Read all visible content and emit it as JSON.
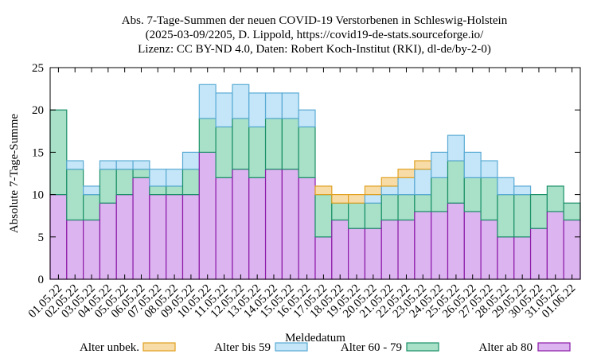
{
  "chart_data": {
    "type": "bar",
    "stacked": true,
    "title_lines": [
      "Abs. 7-Tage-Summen der neuen COVID-19 Verstorbenen in Schleswig-Holstein",
      "(2025-03-09/2205, D. Lippold, https://covid19-de-stats.sourceforge.io/",
      "Lizenz: CC BY-ND 4.0, Daten: Robert Koch-Institut (RKI), dl-de/by-2-0)"
    ],
    "xlabel": "Meldedatum",
    "ylabel": "Absolute 7-Tage-Summe",
    "ylim": [
      0,
      25
    ],
    "yticks": [
      0,
      5,
      10,
      15,
      20,
      25
    ],
    "grid": false,
    "legend_position": "bottom",
    "categories": [
      "01.05.22",
      "02.05.22",
      "03.05.22",
      "04.05.22",
      "05.05.22",
      "06.05.22",
      "07.05.22",
      "08.05.22",
      "09.05.22",
      "10.05.22",
      "11.05.22",
      "12.05.22",
      "13.05.22",
      "14.05.22",
      "15.05.22",
      "16.05.22",
      "17.05.22",
      "18.05.22",
      "19.05.22",
      "20.05.22",
      "21.05.22",
      "22.05.22",
      "23.05.22",
      "24.05.22",
      "25.05.22",
      "26.05.22",
      "27.05.22",
      "28.05.22",
      "29.05.22",
      "30.05.22",
      "31.05.22",
      "01.06.22"
    ],
    "series": [
      {
        "name": "Alter ab 80",
        "color": "#dcb4f0",
        "stroke": "#8c1aa8",
        "values": [
          10,
          7,
          7,
          9,
          10,
          12,
          10,
          10,
          10,
          15,
          12,
          13,
          12,
          13,
          13,
          12,
          5,
          7,
          6,
          6,
          7,
          7,
          8,
          8,
          9,
          8,
          7,
          5,
          5,
          6,
          8,
          7
        ]
      },
      {
        "name": "Alter 60 - 79",
        "color": "#a8e0c8",
        "stroke": "#1a9068",
        "values": [
          10,
          6,
          3,
          4,
          3,
          1,
          1,
          1,
          3,
          4,
          6,
          6,
          6,
          6,
          6,
          6,
          5,
          2,
          3,
          3,
          3,
          3,
          2,
          4,
          5,
          4,
          5,
          5,
          5,
          4,
          3,
          2
        ]
      },
      {
        "name": "Alter bis 59",
        "color": "#c4e6f8",
        "stroke": "#5aaad4",
        "values": [
          0,
          1,
          1,
          1,
          1,
          1,
          2,
          2,
          2,
          4,
          4,
          4,
          4,
          3,
          3,
          2,
          0,
          0,
          0,
          1,
          1,
          2,
          3,
          3,
          3,
          3,
          2,
          2,
          1,
          0,
          0,
          0
        ]
      },
      {
        "name": "Alter unbek.",
        "color": "#f8dca8",
        "stroke": "#e0a020",
        "values": [
          0,
          0,
          0,
          0,
          0,
          0,
          0,
          0,
          0,
          0,
          0,
          0,
          0,
          0,
          0,
          0,
          1,
          1,
          1,
          1,
          1,
          1,
          1,
          0,
          0,
          0,
          0,
          0,
          0,
          0,
          0,
          0
        ]
      }
    ],
    "legend_order": [
      "Alter unbek.",
      "Alter bis 59",
      "Alter 60 - 79",
      "Alter ab 80"
    ]
  }
}
